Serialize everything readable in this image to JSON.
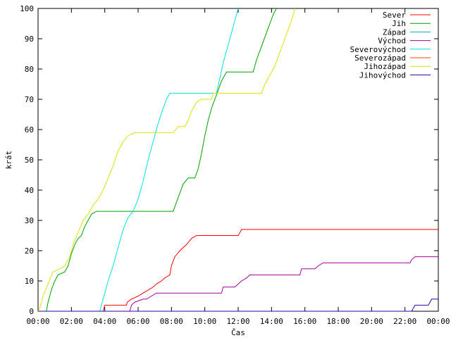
{
  "chart_data": {
    "type": "line",
    "xlabel": "Čas",
    "ylabel": "krát",
    "xlim": [
      0,
      24
    ],
    "ylim": [
      0,
      100
    ],
    "x_unit": "hours",
    "x_ticks": [
      "00:00",
      "02:00",
      "04:00",
      "06:00",
      "08:00",
      "10:00",
      "12:00",
      "14:00",
      "16:00",
      "18:00",
      "20:00",
      "22:00",
      "00:00"
    ],
    "y_ticks": [
      0,
      10,
      20,
      30,
      40,
      50,
      60,
      70,
      80,
      90,
      100
    ],
    "grid": false,
    "legend_position": "top-right",
    "series": [
      {
        "name": "Sever",
        "color": "#ff0000",
        "points": [
          [
            0,
            0
          ],
          [
            3.9,
            0
          ],
          [
            3.95,
            1
          ],
          [
            4.0,
            2
          ],
          [
            5.3,
            2
          ],
          [
            5.35,
            3
          ],
          [
            5.6,
            4
          ],
          [
            6.0,
            5
          ],
          [
            6.3,
            6
          ],
          [
            6.6,
            7
          ],
          [
            6.9,
            8
          ],
          [
            7.1,
            9
          ],
          [
            7.4,
            10
          ],
          [
            7.6,
            11
          ],
          [
            7.9,
            12
          ],
          [
            8.0,
            15
          ],
          [
            8.2,
            18
          ],
          [
            8.5,
            20
          ],
          [
            8.9,
            22
          ],
          [
            9.2,
            24
          ],
          [
            9.5,
            25
          ],
          [
            12.0,
            25
          ],
          [
            12.1,
            26
          ],
          [
            12.2,
            27
          ],
          [
            24,
            27
          ]
        ]
      },
      {
        "name": "Jih",
        "color": "#00a000",
        "points": [
          [
            0,
            0
          ],
          [
            0.5,
            0
          ],
          [
            0.6,
            3
          ],
          [
            0.8,
            7
          ],
          [
            1.0,
            10
          ],
          [
            1.2,
            12
          ],
          [
            1.6,
            13
          ],
          [
            1.8,
            15
          ],
          [
            2.0,
            19
          ],
          [
            2.2,
            22
          ],
          [
            2.4,
            24
          ],
          [
            2.6,
            25
          ],
          [
            2.8,
            28
          ],
          [
            3.0,
            30
          ],
          [
            3.2,
            32
          ],
          [
            3.5,
            33
          ],
          [
            8.1,
            33
          ],
          [
            8.3,
            36
          ],
          [
            8.5,
            39
          ],
          [
            8.7,
            42
          ],
          [
            9.0,
            44
          ],
          [
            9.4,
            44
          ],
          [
            9.6,
            47
          ],
          [
            9.8,
            52
          ],
          [
            10.0,
            58
          ],
          [
            10.2,
            63
          ],
          [
            10.4,
            67
          ],
          [
            10.6,
            70
          ],
          [
            10.8,
            73
          ],
          [
            11.0,
            76
          ],
          [
            11.3,
            79
          ],
          [
            12.9,
            79
          ],
          [
            13.1,
            83
          ],
          [
            13.3,
            86
          ],
          [
            13.5,
            89
          ],
          [
            13.7,
            92
          ],
          [
            13.9,
            95
          ],
          [
            14.1,
            98
          ],
          [
            14.3,
            100
          ]
        ]
      },
      {
        "name": "Západ",
        "color": "#00b0b0",
        "points": []
      },
      {
        "name": "Východ",
        "color": "#a000a0",
        "points": [
          [
            0,
            0
          ],
          [
            5.5,
            0
          ],
          [
            5.6,
            2
          ],
          [
            5.8,
            3
          ],
          [
            6.3,
            4
          ],
          [
            6.5,
            4
          ],
          [
            6.8,
            5
          ],
          [
            7.1,
            6
          ],
          [
            11.0,
            6
          ],
          [
            11.1,
            8
          ],
          [
            11.8,
            8
          ],
          [
            12.0,
            9
          ],
          [
            12.2,
            10
          ],
          [
            12.5,
            11
          ],
          [
            12.7,
            12
          ],
          [
            15.7,
            12
          ],
          [
            15.8,
            14
          ],
          [
            16.6,
            14
          ],
          [
            16.8,
            15
          ],
          [
            17.1,
            16
          ],
          [
            22.3,
            16
          ],
          [
            22.4,
            17
          ],
          [
            22.6,
            18
          ],
          [
            24,
            18
          ]
        ]
      },
      {
        "name": "Severovýchod",
        "color": "#00e0e0",
        "points": [
          [
            0,
            0
          ],
          [
            3.7,
            0
          ],
          [
            3.8,
            2
          ],
          [
            4.0,
            6
          ],
          [
            4.2,
            10
          ],
          [
            4.5,
            15
          ],
          [
            4.8,
            21
          ],
          [
            5.1,
            27
          ],
          [
            5.4,
            31
          ],
          [
            5.7,
            33
          ],
          [
            6.0,
            37
          ],
          [
            6.3,
            43
          ],
          [
            6.6,
            50
          ],
          [
            6.9,
            56
          ],
          [
            7.2,
            62
          ],
          [
            7.5,
            67
          ],
          [
            7.7,
            70
          ],
          [
            7.9,
            72
          ],
          [
            10.7,
            72
          ],
          [
            10.9,
            77
          ],
          [
            11.1,
            82
          ],
          [
            11.3,
            86
          ],
          [
            11.5,
            90
          ],
          [
            11.7,
            94
          ],
          [
            11.9,
            98
          ],
          [
            12.0,
            100
          ]
        ]
      },
      {
        "name": "Severozápad",
        "color": "#ff4000",
        "points": []
      },
      {
        "name": "Jihozápad",
        "color": "#e0e000",
        "points": [
          [
            0,
            0
          ],
          [
            0.1,
            1
          ],
          [
            0.3,
            5
          ],
          [
            0.6,
            9
          ],
          [
            0.9,
            13
          ],
          [
            1.3,
            14
          ],
          [
            1.6,
            15
          ],
          [
            1.9,
            18
          ],
          [
            2.1,
            22
          ],
          [
            2.4,
            26
          ],
          [
            2.7,
            30
          ],
          [
            3.0,
            32
          ],
          [
            3.3,
            35
          ],
          [
            3.6,
            37
          ],
          [
            3.9,
            40
          ],
          [
            4.2,
            44
          ],
          [
            4.5,
            48
          ],
          [
            4.8,
            53
          ],
          [
            5.1,
            56
          ],
          [
            5.4,
            58
          ],
          [
            5.8,
            59
          ],
          [
            8.1,
            59
          ],
          [
            8.4,
            61
          ],
          [
            8.8,
            61
          ],
          [
            9.0,
            63
          ],
          [
            9.2,
            66
          ],
          [
            9.5,
            69
          ],
          [
            9.8,
            70
          ],
          [
            10.4,
            70
          ],
          [
            10.5,
            72
          ],
          [
            13.4,
            72
          ],
          [
            13.6,
            75
          ],
          [
            13.9,
            78
          ],
          [
            14.2,
            81
          ],
          [
            14.4,
            84
          ],
          [
            14.6,
            87
          ],
          [
            14.8,
            90
          ],
          [
            15.0,
            93
          ],
          [
            15.2,
            96
          ],
          [
            15.4,
            100
          ]
        ]
      },
      {
        "name": "Jihovýchod",
        "color": "#3000a0",
        "points": [
          [
            0,
            0
          ],
          [
            22.4,
            0
          ],
          [
            22.5,
            1
          ],
          [
            22.6,
            2
          ],
          [
            23.4,
            2
          ],
          [
            23.5,
            3
          ],
          [
            23.6,
            4
          ],
          [
            24,
            4
          ]
        ]
      }
    ]
  }
}
